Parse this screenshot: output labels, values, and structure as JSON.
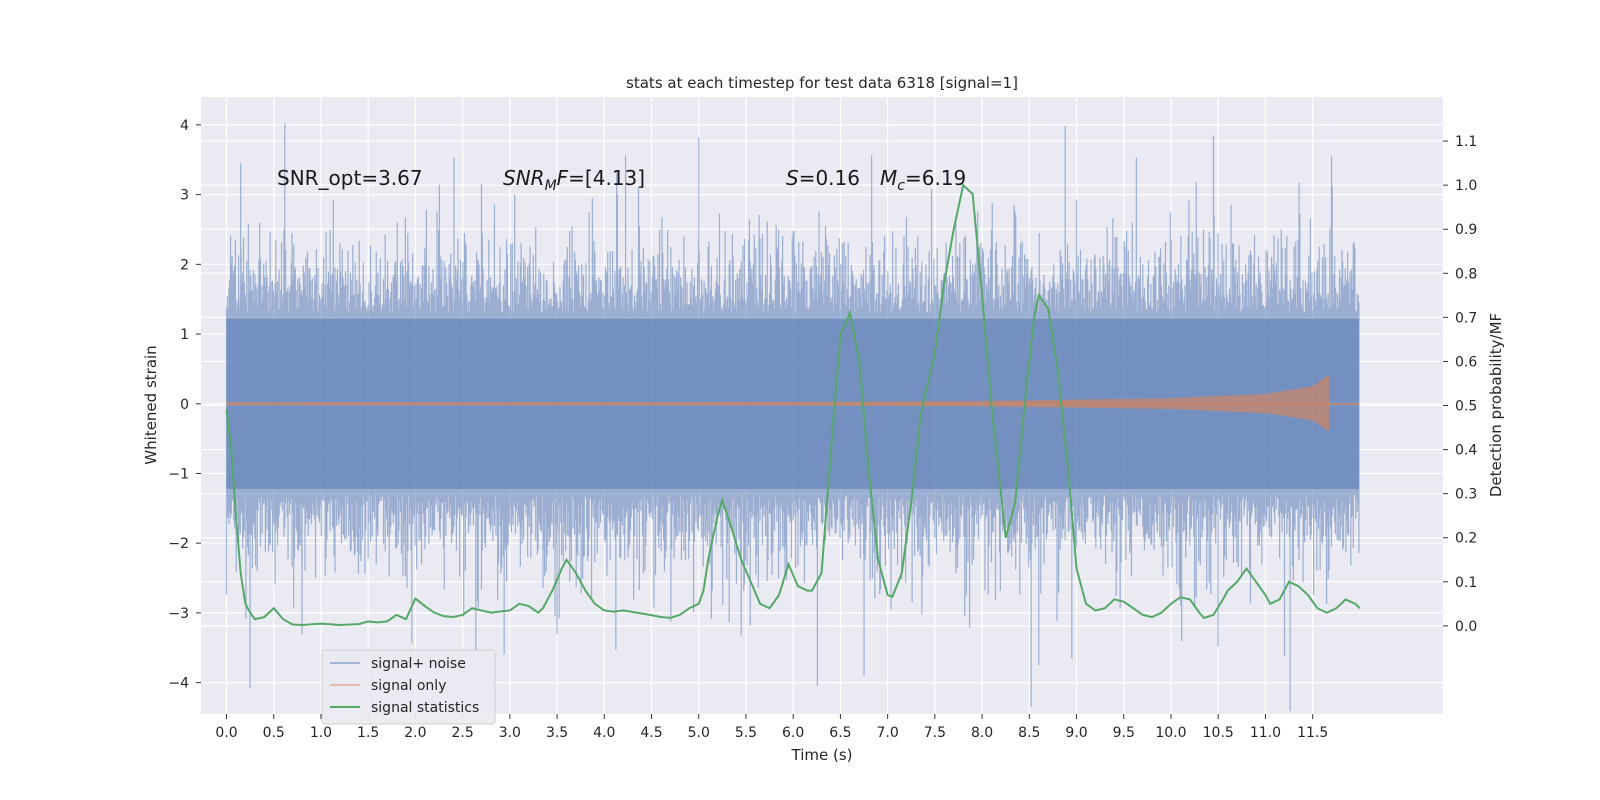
{
  "chart_data": {
    "type": "line",
    "title": "stats at each timestep for test data 6318 [signal=1]",
    "xlabel": "Time (s)",
    "ylabel": "Whitened strain",
    "ylabel_right": "Detection probability/MF",
    "xlim": [
      -0.27,
      12.88
    ],
    "ylim": [
      -4.45,
      4.4
    ],
    "ylim_right": [
      -0.2,
      1.2
    ],
    "x_ticks": [
      0.0,
      0.5,
      1.0,
      1.5,
      2.0,
      2.5,
      3.0,
      3.5,
      4.0,
      4.5,
      5.0,
      5.5,
      6.0,
      6.5,
      7.0,
      7.5,
      8.0,
      8.5,
      9.0,
      9.5,
      10.0,
      10.5,
      11.0,
      11.5
    ],
    "x_tick_labels": [
      "0.0",
      "0.5",
      "1.0",
      "1.5",
      "2.0",
      "2.5",
      "3.0",
      "3.5",
      "4.0",
      "4.5",
      "5.0",
      "5.5",
      "6.0",
      "6.5",
      "7.0",
      "7.5",
      "8.0",
      "8.5",
      "9.0",
      "9.5",
      "10.0",
      "10.5",
      "11.0",
      "11.5"
    ],
    "y_ticks": [
      -4,
      -3,
      -2,
      -1,
      0,
      1,
      2,
      3,
      4
    ],
    "y_tick_labels": [
      "−4",
      "−3",
      "−2",
      "−1",
      "0",
      "1",
      "2",
      "3",
      "4"
    ],
    "y_ticks_right": [
      0.0,
      0.1,
      0.2,
      0.3,
      0.4,
      0.5,
      0.6,
      0.7,
      0.8,
      0.9,
      1.0,
      1.1
    ],
    "y_tick_labels_right": [
      "0.0",
      "0.1",
      "0.2",
      "0.3",
      "0.4",
      "0.5",
      "0.6",
      "0.7",
      "0.8",
      "0.9",
      "1.0",
      "1.1"
    ],
    "grid": true,
    "legend_position": "lower-left",
    "annotations": [
      {
        "text": "SNR_opt=3.67"
      },
      {
        "text_parts": [
          {
            "t": "SNR",
            "italic": true
          },
          {
            "t": "M",
            "italic": true,
            "sub": true
          },
          {
            "t": "F",
            "italic": true
          },
          {
            "t": "=[4.13]"
          }
        ]
      },
      {
        "text_parts": [
          {
            "t": "S",
            "italic": true
          },
          {
            "t": "=0.16"
          }
        ]
      },
      {
        "text_parts": [
          {
            "t": "M",
            "italic": true
          },
          {
            "t": "c",
            "italic": true,
            "sub": true
          },
          {
            "t": "=6.19"
          }
        ]
      }
    ],
    "series": [
      {
        "name": "signal+ noise",
        "axis": "left",
        "color": "#4c72b0",
        "x_range": [
          0.0,
          11.99
        ],
        "envelope_typical": [
          -1.3,
          1.3
        ],
        "notable_peaks": [
          {
            "x": 0.15,
            "y": 3.45
          },
          {
            "x": 5.0,
            "y": 3.82
          },
          {
            "x": 8.88,
            "y": 3.98
          },
          {
            "x": 10.45,
            "y": 3.85
          },
          {
            "x": 11.7,
            "y": 3.55
          },
          {
            "x": 0.25,
            "y": -4.08
          },
          {
            "x": 0.8,
            "y": -3.3
          },
          {
            "x": 6.75,
            "y": -3.9
          },
          {
            "x": 8.6,
            "y": -3.75
          },
          {
            "x": 8.95,
            "y": -3.65
          },
          {
            "x": 3.5,
            "y": -3.3
          },
          {
            "x": 5.45,
            "y": -3.32
          }
        ]
      },
      {
        "name": "signal only",
        "axis": "left",
        "color": "#dd8452",
        "x_range": [
          0.0,
          11.99
        ],
        "chirp_end": 11.68,
        "amplitude_profile": [
          {
            "x": 0.0,
            "amp": 0.02
          },
          {
            "x": 6.0,
            "amp": 0.025
          },
          {
            "x": 8.0,
            "amp": 0.04
          },
          {
            "x": 10.0,
            "amp": 0.08
          },
          {
            "x": 11.0,
            "amp": 0.14
          },
          {
            "x": 11.5,
            "amp": 0.25
          },
          {
            "x": 11.65,
            "amp": 0.4
          }
        ]
      },
      {
        "name": "signal statistics",
        "axis": "right",
        "color": "#55a868",
        "points": [
          [
            0.0,
            0.49
          ],
          [
            0.05,
            0.4
          ],
          [
            0.1,
            0.25
          ],
          [
            0.15,
            0.12
          ],
          [
            0.2,
            0.05
          ],
          [
            0.25,
            0.03
          ],
          [
            0.3,
            0.015
          ],
          [
            0.4,
            0.02
          ],
          [
            0.5,
            0.04
          ],
          [
            0.6,
            0.015
          ],
          [
            0.7,
            0.003
          ],
          [
            0.8,
            0.002
          ],
          [
            1.0,
            0.005
          ],
          [
            1.2,
            0.002
          ],
          [
            1.4,
            0.004
          ],
          [
            1.5,
            0.01
          ],
          [
            1.6,
            0.008
          ],
          [
            1.7,
            0.01
          ],
          [
            1.8,
            0.025
          ],
          [
            1.9,
            0.015
          ],
          [
            2.0,
            0.062
          ],
          [
            2.1,
            0.045
          ],
          [
            2.2,
            0.03
          ],
          [
            2.3,
            0.022
          ],
          [
            2.4,
            0.02
          ],
          [
            2.5,
            0.025
          ],
          [
            2.6,
            0.04
          ],
          [
            2.7,
            0.035
          ],
          [
            2.8,
            0.03
          ],
          [
            3.0,
            0.035
          ],
          [
            3.1,
            0.05
          ],
          [
            3.2,
            0.045
          ],
          [
            3.3,
            0.03
          ],
          [
            3.35,
            0.04
          ],
          [
            3.45,
            0.08
          ],
          [
            3.55,
            0.13
          ],
          [
            3.6,
            0.15
          ],
          [
            3.7,
            0.12
          ],
          [
            3.8,
            0.08
          ],
          [
            3.9,
            0.05
          ],
          [
            4.0,
            0.035
          ],
          [
            4.1,
            0.032
          ],
          [
            4.2,
            0.035
          ],
          [
            4.4,
            0.028
          ],
          [
            4.6,
            0.02
          ],
          [
            4.7,
            0.018
          ],
          [
            4.8,
            0.025
          ],
          [
            4.9,
            0.04
          ],
          [
            5.0,
            0.05
          ],
          [
            5.05,
            0.08
          ],
          [
            5.1,
            0.15
          ],
          [
            5.2,
            0.25
          ],
          [
            5.25,
            0.285
          ],
          [
            5.35,
            0.22
          ],
          [
            5.45,
            0.15
          ],
          [
            5.55,
            0.1
          ],
          [
            5.65,
            0.05
          ],
          [
            5.75,
            0.04
          ],
          [
            5.85,
            0.07
          ],
          [
            5.95,
            0.14
          ],
          [
            6.05,
            0.09
          ],
          [
            6.15,
            0.08
          ],
          [
            6.2,
            0.08
          ],
          [
            6.3,
            0.12
          ],
          [
            6.4,
            0.4
          ],
          [
            6.5,
            0.66
          ],
          [
            6.6,
            0.71
          ],
          [
            6.7,
            0.6
          ],
          [
            6.8,
            0.35
          ],
          [
            6.9,
            0.15
          ],
          [
            7.0,
            0.07
          ],
          [
            7.05,
            0.066
          ],
          [
            7.15,
            0.12
          ],
          [
            7.25,
            0.28
          ],
          [
            7.35,
            0.48
          ],
          [
            7.5,
            0.62
          ],
          [
            7.6,
            0.78
          ],
          [
            7.7,
            0.9
          ],
          [
            7.8,
            1.0
          ],
          [
            7.9,
            0.98
          ],
          [
            8.0,
            0.75
          ],
          [
            8.1,
            0.5
          ],
          [
            8.2,
            0.3
          ],
          [
            8.25,
            0.2
          ],
          [
            8.35,
            0.28
          ],
          [
            8.45,
            0.5
          ],
          [
            8.55,
            0.7
          ],
          [
            8.6,
            0.75
          ],
          [
            8.7,
            0.72
          ],
          [
            8.8,
            0.58
          ],
          [
            8.9,
            0.38
          ],
          [
            9.0,
            0.13
          ],
          [
            9.1,
            0.05
          ],
          [
            9.2,
            0.035
          ],
          [
            9.3,
            0.04
          ],
          [
            9.4,
            0.06
          ],
          [
            9.5,
            0.055
          ],
          [
            9.6,
            0.04
          ],
          [
            9.7,
            0.025
          ],
          [
            9.8,
            0.02
          ],
          [
            9.9,
            0.03
          ],
          [
            10.0,
            0.05
          ],
          [
            10.1,
            0.065
          ],
          [
            10.2,
            0.06
          ],
          [
            10.3,
            0.03
          ],
          [
            10.35,
            0.018
          ],
          [
            10.45,
            0.025
          ],
          [
            10.55,
            0.06
          ],
          [
            10.6,
            0.08
          ],
          [
            10.7,
            0.1
          ],
          [
            10.8,
            0.13
          ],
          [
            10.9,
            0.1
          ],
          [
            11.0,
            0.07
          ],
          [
            11.05,
            0.05
          ],
          [
            11.15,
            0.06
          ],
          [
            11.25,
            0.1
          ],
          [
            11.35,
            0.09
          ],
          [
            11.45,
            0.07
          ],
          [
            11.55,
            0.04
          ],
          [
            11.65,
            0.03
          ],
          [
            11.75,
            0.04
          ],
          [
            11.85,
            0.06
          ],
          [
            11.95,
            0.05
          ],
          [
            12.0,
            0.04
          ]
        ]
      }
    ]
  }
}
